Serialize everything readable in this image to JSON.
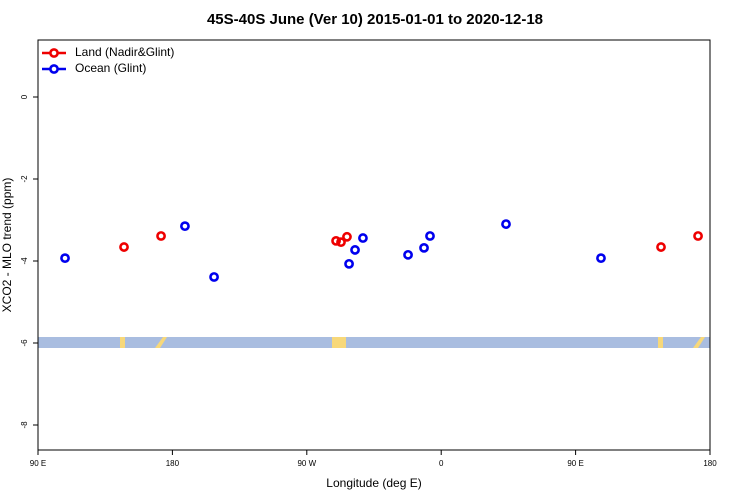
{
  "chart_data": {
    "type": "scatter",
    "title": "45S-40S June (Ver 10)   2015-01-01 to 2020-12-18",
    "x_label": "Longitude (deg E)",
    "y_label": "XCO2 - MLO trend (ppm)",
    "xlim": [
      90,
      540
    ],
    "ylim": [
      -8.61,
      1.39
    ],
    "xticks": [
      {
        "value": 90,
        "label": "90 E"
      },
      180,
      {
        "value": 270,
        "label": "90 W"
      },
      {
        "value": 360,
        "label": "0"
      },
      {
        "value": 450,
        "label": "90 E"
      },
      {
        "value": 540,
        "label": "180"
      }
    ],
    "yticks": [
      0,
      -2,
      -4,
      -6,
      -8
    ],
    "legend": "top-left",
    "series": [
      {
        "name": "Land (Nadir&Glint)",
        "color": "#ee0000",
        "x": [
          147.6,
          172.4,
          289.6,
          292.9,
          296.9,
          507.2,
          532
        ],
        "values": [
          -3.66,
          -3.39,
          -3.51,
          -3.54,
          -3.41,
          -3.66,
          -3.39
        ]
      },
      {
        "name": "Ocean (Glint)",
        "color": "#0000ee",
        "x": [
          108.1,
          188.4,
          207.9,
          298.3,
          302.3,
          307.6,
          337.8,
          348.5,
          352.5,
          403.4,
          467
        ],
        "values": [
          -3.93,
          -3.15,
          -4.39,
          -4.07,
          -3.73,
          -3.44,
          -3.85,
          -3.68,
          -3.39,
          -3.1,
          -3.93
        ]
      }
    ]
  }
}
